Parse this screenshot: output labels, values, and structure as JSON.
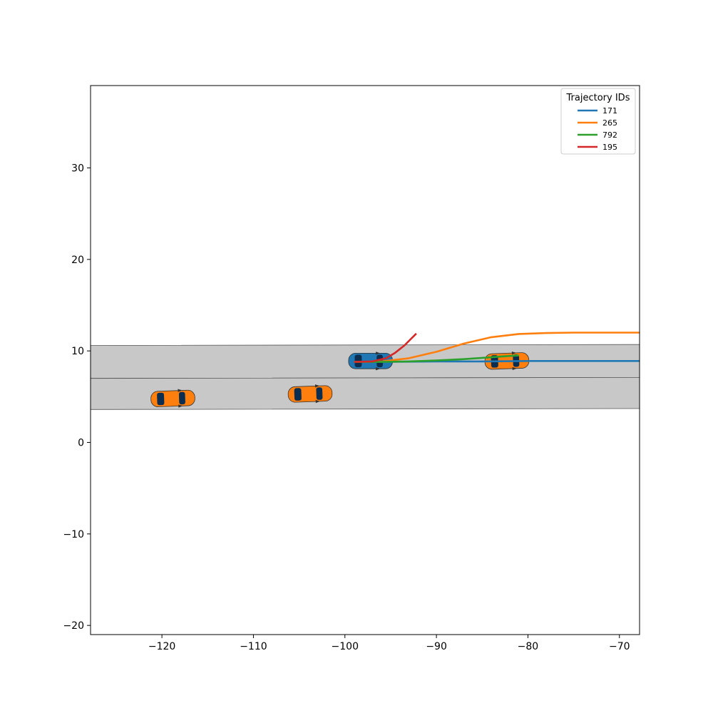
{
  "chart_data": {
    "type": "line",
    "title": "",
    "xlabel": "",
    "ylabel": "",
    "xlim": [
      -127.8,
      -67.8
    ],
    "ylim": [
      -21,
      39
    ],
    "xticks": [
      -120,
      -110,
      -100,
      -90,
      -80,
      -70
    ],
    "yticks": [
      -20,
      -10,
      0,
      10,
      20,
      30
    ],
    "xtick_labels": [
      "−120",
      "−110",
      "−100",
      "−90",
      "−80",
      "−70"
    ],
    "ytick_labels": [
      "−20",
      "−10",
      "0",
      "10",
      "20",
      "30"
    ],
    "grid": false,
    "legend": {
      "title": "Trajectory IDs",
      "placement": "top-right"
    },
    "road": {
      "color": "#c8c8c8",
      "lanes": [
        {
          "x": [
            -127.8,
            -67.8
          ],
          "y_top": [
            10.6,
            10.7
          ],
          "y_bottom": [
            7.0,
            7.1
          ]
        },
        {
          "x": [
            -127.8,
            -67.8
          ],
          "y_top": [
            7.0,
            7.1
          ],
          "y_bottom": [
            3.6,
            3.7
          ]
        }
      ]
    },
    "series": [
      {
        "name": "171",
        "color": "#1f77b4",
        "x": [
          -99,
          -96,
          -90,
          -85,
          -80,
          -75,
          -70,
          -67.8
        ],
        "y": [
          8.8,
          8.8,
          8.85,
          8.85,
          8.9,
          8.9,
          8.9,
          8.9
        ]
      },
      {
        "name": "265",
        "color": "#ff7f0e",
        "x": [
          -99,
          -96,
          -93,
          -90,
          -87,
          -84,
          -81,
          -78,
          -75,
          -72,
          -69,
          -67.8
        ],
        "y": [
          8.8,
          8.85,
          9.2,
          9.9,
          10.8,
          11.5,
          11.85,
          11.95,
          12.0,
          12.0,
          12.0,
          12.0
        ]
      },
      {
        "name": "792",
        "color": "#2ca02c",
        "x": [
          -99,
          -96,
          -93,
          -90,
          -87,
          -84,
          -82,
          -81
        ],
        "y": [
          8.8,
          8.8,
          8.85,
          8.95,
          9.1,
          9.3,
          9.45,
          9.5
        ]
      },
      {
        "name": "195",
        "color": "#d62728",
        "x": [
          -99,
          -97,
          -95.5,
          -94.5,
          -93.5,
          -92.8,
          -92.2
        ],
        "y": [
          8.8,
          8.85,
          9.2,
          9.8,
          10.6,
          11.3,
          11.9
        ]
      }
    ],
    "vehicles": [
      {
        "x": -118.8,
        "y": 4.8,
        "heading_deg": 2,
        "color": "#ff7f0e"
      },
      {
        "x": -103.8,
        "y": 5.3,
        "heading_deg": 2,
        "color": "#ff7f0e"
      },
      {
        "x": -97.2,
        "y": 8.9,
        "heading_deg": 0,
        "color": "#1f77b4"
      },
      {
        "x": -82.3,
        "y": 8.9,
        "heading_deg": 2,
        "color": "#ff7f0e"
      }
    ]
  }
}
